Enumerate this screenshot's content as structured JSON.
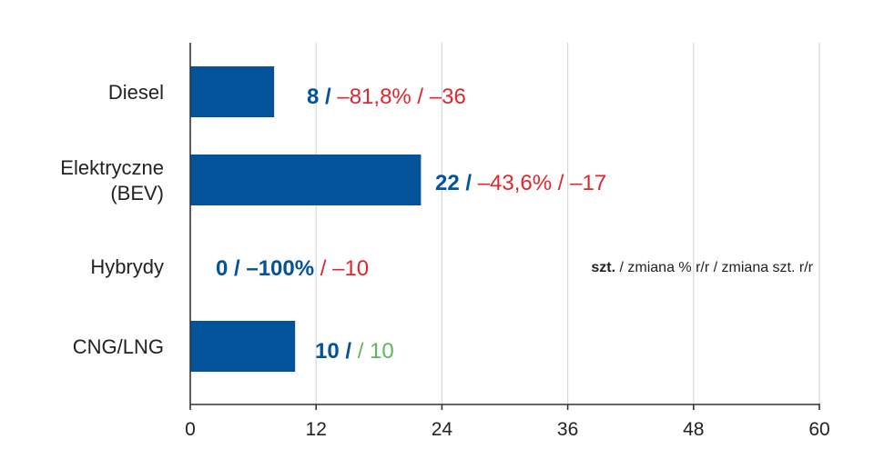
{
  "chart_data": {
    "type": "bar",
    "orientation": "horizontal",
    "categories": [
      [
        "Diesel"
      ],
      [
        "Elektryczne",
        "(BEV)"
      ],
      [
        "Hybrydy"
      ],
      [
        "CNG/LNG"
      ]
    ],
    "values": [
      8,
      22,
      0,
      10
    ],
    "annotations": [
      {
        "units": "8",
        "pct": "–81,8%",
        "diff": "–36",
        "diff_color": "#e0262e"
      },
      {
        "units": "22",
        "pct": "–43,6%",
        "diff": "–17",
        "diff_color": "#e0262e"
      },
      {
        "units": "0",
        "pct": "–100%",
        "diff": "–10",
        "diff_color": "#e0262e"
      },
      {
        "units": "10",
        "pct": "",
        "diff": "10",
        "diff_color": "#5cb85c"
      }
    ],
    "xlim": [
      0,
      60
    ],
    "xticks": [
      0,
      12,
      24,
      36,
      48,
      60
    ],
    "grid": true,
    "legend": {
      "bold": "szt.",
      "rest": " / zmiana % r/r / zmiana szt. r/r"
    },
    "colors": {
      "bar": "#02539a",
      "units": "#02539a",
      "negative": "#e0262e",
      "positive": "#5cb85c",
      "grid": "#d8d8d8",
      "axis": "#333333"
    }
  }
}
